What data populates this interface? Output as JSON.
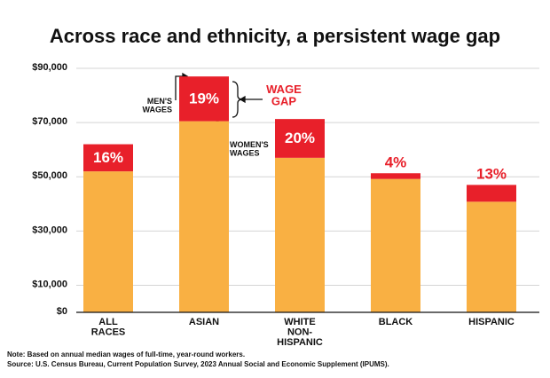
{
  "chart_data": {
    "type": "stacked_bar",
    "title": "Across race and ethnicity, a persistent wage gap",
    "categories": [
      "ALL\nRACES",
      "ASIAN",
      "WHITE\nNON-\nHISPANIC",
      "BLACK",
      "HISPANIC"
    ],
    "series": [
      {
        "name": "WOMEN'S\nWAGES",
        "color": "#f9b043",
        "values": [
          52000,
          70500,
          57000,
          49200,
          40800
        ]
      },
      {
        "name": "WAGE\nGAP",
        "color": "#e8202a",
        "values": [
          10000,
          16500,
          14300,
          2100,
          6200
        ]
      }
    ],
    "gap_labels": [
      "16%",
      "19%",
      "20%",
      "4%",
      "13%"
    ],
    "annotation": "MEN'S\nWAGES",
    "ylim": [
      0,
      90000
    ],
    "yticks": [
      {
        "value": 0,
        "label": "$0"
      },
      {
        "value": 10000,
        "label": "$10,000"
      },
      {
        "value": 30000,
        "label": "$30,000"
      },
      {
        "value": 50000,
        "label": "$50,000"
      },
      {
        "value": 70000,
        "label": "$70,000"
      },
      {
        "value": 90000,
        "label": "$90,000"
      }
    ],
    "grid": true,
    "notes": [
      "Note: Based on annual median wages of full-time, year-round workers.",
      "Source: U.S. Census Bureau, Current Population Survey, 2023 Annual Social and Economic Supplement (IPUMS)."
    ]
  }
}
